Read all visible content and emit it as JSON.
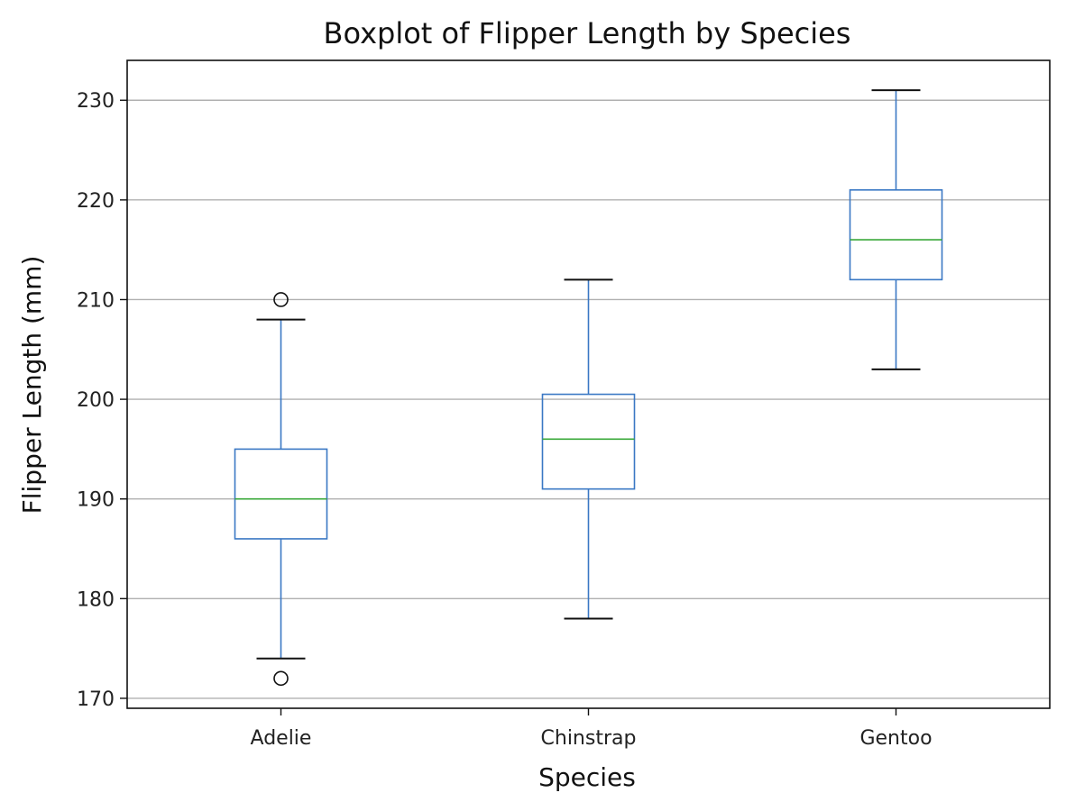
{
  "chart_data": {
    "type": "boxplot",
    "title": "Boxplot of Flipper Length by Species",
    "xlabel": "Species",
    "ylabel": "Flipper Length (mm)",
    "categories": [
      "Adelie",
      "Chinstrap",
      "Gentoo"
    ],
    "ylim": [
      169,
      234
    ],
    "yticks": [
      170,
      180,
      190,
      200,
      210,
      220,
      230
    ],
    "grid": "horizontal",
    "boxes": [
      {
        "category": "Adelie",
        "whisker_low": 174,
        "q1": 186,
        "median": 190,
        "q3": 195,
        "whisker_high": 208,
        "outliers": [
          172,
          210
        ]
      },
      {
        "category": "Chinstrap",
        "whisker_low": 178,
        "q1": 191,
        "median": 196,
        "q3": 200.5,
        "whisker_high": 212,
        "outliers": []
      },
      {
        "category": "Gentoo",
        "whisker_low": 203,
        "q1": 212,
        "median": 216,
        "q3": 221,
        "whisker_high": 231,
        "outliers": []
      }
    ],
    "colors": {
      "box": "#3a78c4",
      "median": "#3aa83a",
      "cap": "#111111",
      "grid": "#b0b0b0",
      "axes": "#111111"
    }
  }
}
